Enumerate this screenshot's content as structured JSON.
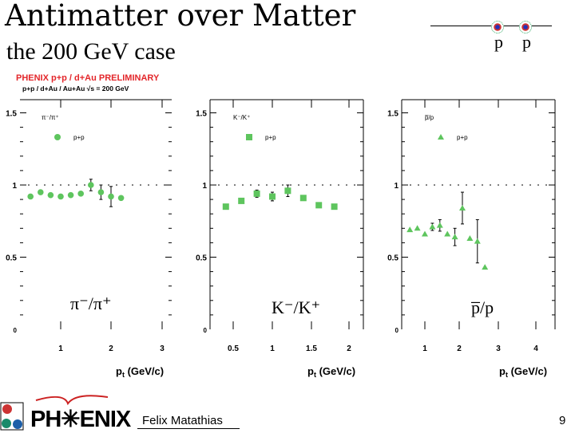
{
  "slide": {
    "title": "Antimatter over Matter",
    "subtitle": "the 200 GeV case",
    "collision_label": [
      "p",
      "p"
    ],
    "preliminary_label": "PHENIX p+p / d+Au PRELIMINARY",
    "energy_label": "p+p / d+Au / Au+Au  √s = 200 GeV",
    "author": "Felix Matathias",
    "page_number": "9",
    "logo_text": "PH✳ENIX"
  },
  "colors": {
    "data_points": "#5ec55e",
    "preliminary_red": "#e3262a",
    "axes": "#000000"
  },
  "chart_data": [
    {
      "type": "scatter",
      "title": "π⁻/π⁺",
      "inner_label": "π⁻/π⁺",
      "legend": [
        {
          "marker": "circle",
          "label": "p+p"
        }
      ],
      "xlabel": "p_t (GeV/c)",
      "ylabel": "",
      "xlim": [
        0,
        3.1
      ],
      "ylim": [
        0,
        1.55
      ],
      "xticks": [
        "1",
        "2",
        "3"
      ],
      "yticks": [
        "0",
        "0.5",
        "1",
        "1.5"
      ],
      "reference_line": 1.0,
      "series": [
        {
          "name": "p+p",
          "x": [
            0.4,
            0.6,
            0.8,
            1.0,
            1.2,
            1.4,
            1.6,
            1.8,
            2.0,
            2.2
          ],
          "y": [
            0.92,
            0.95,
            0.93,
            0.92,
            0.93,
            0.94,
            1.0,
            0.95,
            0.92,
            0.91
          ],
          "yerr": [
            0,
            0,
            0,
            0,
            0,
            0,
            0.04,
            0.05,
            0.07,
            0
          ]
        }
      ]
    },
    {
      "type": "scatter",
      "title": "K⁻/K⁺",
      "inner_label": "K⁻/K⁺",
      "legend": [
        {
          "marker": "square",
          "label": "p+p"
        }
      ],
      "xlabel": "p_t (GeV/c)",
      "ylabel": "",
      "xlim": [
        0.2,
        2.2
      ],
      "ylim": [
        0,
        1.55
      ],
      "xticks": [
        "0.5",
        "1",
        "1.5",
        "2"
      ],
      "yticks": [
        "0",
        "0.5",
        "1",
        "1.5"
      ],
      "reference_line": 1.0,
      "series": [
        {
          "name": "p+p",
          "x": [
            0.4,
            0.6,
            0.8,
            1.0,
            1.2,
            1.4,
            1.6,
            1.8
          ],
          "y": [
            0.85,
            0.89,
            0.94,
            0.92,
            0.96,
            0.91,
            0.86,
            0.85
          ],
          "yerr": [
            0,
            0,
            0.025,
            0.03,
            0.04,
            0,
            0,
            0
          ]
        }
      ]
    },
    {
      "type": "scatter",
      "title": "p̅/p",
      "inner_label": "p̅/p",
      "legend": [
        {
          "marker": "triangle",
          "label": "p+p"
        }
      ],
      "xlabel": "p_t (GeV/c)",
      "ylabel": "",
      "xlim": [
        0.2,
        4.5
      ],
      "ylim": [
        0,
        1.55
      ],
      "xticks": [
        "1",
        "2",
        "3",
        "4"
      ],
      "yticks": [
        "0",
        "0.5",
        "1",
        "1.5"
      ],
      "reference_line": 1.0,
      "series": [
        {
          "name": "p+p",
          "x": [
            0.6,
            0.8,
            1.0,
            1.2,
            1.4,
            1.6,
            1.8,
            2.0,
            2.2,
            2.4,
            2.6
          ],
          "y": [
            0.69,
            0.7,
            0.66,
            0.71,
            0.72,
            0.66,
            0.64,
            0.84,
            0.63,
            0.61,
            0.43
          ],
          "yerr": [
            0,
            0,
            0,
            0.025,
            0.04,
            0,
            0.06,
            0.11,
            0,
            0.15,
            0
          ]
        }
      ]
    }
  ]
}
